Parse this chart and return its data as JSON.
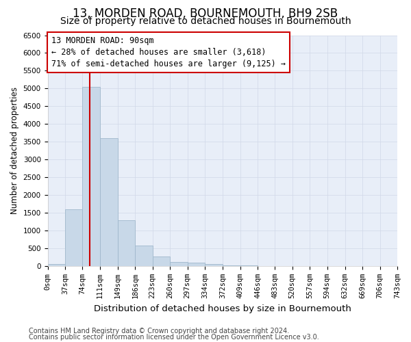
{
  "title": "13, MORDEN ROAD, BOURNEMOUTH, BH9 2SB",
  "subtitle": "Size of property relative to detached houses in Bournemouth",
  "xlabel": "Distribution of detached houses by size in Bournemouth",
  "ylabel": "Number of detached properties",
  "footer_lines": [
    "Contains HM Land Registry data © Crown copyright and database right 2024.",
    "Contains public sector information licensed under the Open Government Licence v3.0."
  ],
  "bar_edges": [
    0,
    37,
    74,
    111,
    149,
    186,
    223,
    260,
    297,
    334,
    372,
    409,
    446,
    483,
    520,
    557,
    594,
    632,
    669,
    706,
    743
  ],
  "bar_heights": [
    50,
    1600,
    5050,
    3600,
    1280,
    580,
    270,
    120,
    90,
    55,
    20,
    10,
    5,
    2,
    0,
    0,
    0,
    0,
    0,
    0
  ],
  "bar_color": "#c8d8e8",
  "bar_edge_color": "#a0b8cc",
  "red_line_x": 90,
  "annotation_line1": "13 MORDEN ROAD: 90sqm",
  "annotation_line2": "← 28% of detached houses are smaller (3,618)",
  "annotation_line3": "71% of semi-detached houses are larger (9,125) →",
  "annotation_box_color": "#ffffff",
  "annotation_box_edge_color": "#cc0000",
  "red_line_color": "#cc0000",
  "ylim": [
    0,
    6500
  ],
  "yticks": [
    0,
    500,
    1000,
    1500,
    2000,
    2500,
    3000,
    3500,
    4000,
    4500,
    5000,
    5500,
    6000,
    6500
  ],
  "grid_color": "#d0d8e8",
  "background_color": "#e8eef8",
  "title_fontsize": 12,
  "subtitle_fontsize": 10,
  "xlabel_fontsize": 9.5,
  "ylabel_fontsize": 8.5,
  "tick_label_fontsize": 7.5,
  "annotation_fontsize": 8.5,
  "footer_fontsize": 7
}
